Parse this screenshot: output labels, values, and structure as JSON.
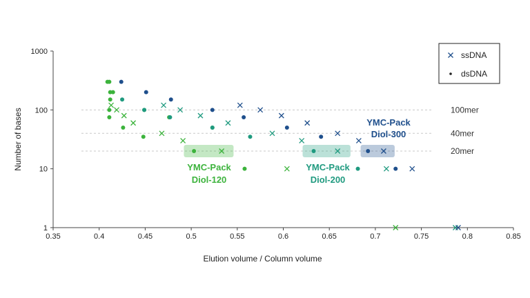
{
  "chart_data": {
    "type": "scatter",
    "title": "",
    "xlabel": "Elution volume / Column volume",
    "ylabel": "Number of bases",
    "xlim": [
      0.35,
      0.85
    ],
    "ylim": [
      1,
      1000
    ],
    "y_scale": "log",
    "x_ticks": [
      "0.35",
      "0.4",
      "0.45",
      "0.5",
      "0.55",
      "0.6",
      "0.65",
      "0.7",
      "0.75",
      "0.8",
      "0.85"
    ],
    "y_ticks": [
      "1",
      "10",
      "100",
      "1000"
    ],
    "legend": {
      "position": "top-right",
      "entries": [
        {
          "label": "ssDNA",
          "marker": "x"
        },
        {
          "label": "dsDNA",
          "marker": "dot"
        }
      ]
    },
    "reference_lines": [
      {
        "y": 100,
        "label": "100mer"
      },
      {
        "y": 40,
        "label": "40mer"
      },
      {
        "y": 20,
        "label": "20mer"
      }
    ],
    "groups": [
      {
        "label_line1": "YMC-Pack",
        "label_line2": "Diol-120",
        "color": "#3cb33c",
        "highlight_x": [
          0.492,
          0.546
        ],
        "highlight_y": 20
      },
      {
        "label_line1": "YMC-Pack",
        "label_line2": "Diol-200",
        "color": "#1f9a7f",
        "highlight_x": [
          0.621,
          0.673
        ],
        "highlight_y": 20
      },
      {
        "label_line1": "YMC-Pack",
        "label_line2": "Diol-300",
        "color": "#1f4f8c",
        "highlight_x": [
          0.684,
          0.721
        ],
        "highlight_y": 20
      }
    ],
    "series": [
      {
        "group": 0,
        "marker": "dot",
        "color": "#3cb33c",
        "points": [
          [
            0.409,
            300
          ],
          [
            0.411,
            300
          ],
          [
            0.412,
            200
          ],
          [
            0.415,
            200
          ],
          [
            0.412,
            150
          ],
          [
            0.411,
            100
          ],
          [
            0.411,
            75
          ],
          [
            0.426,
            50
          ],
          [
            0.448,
            35
          ],
          [
            0.449,
            100
          ],
          [
            0.476,
            75
          ],
          [
            0.503,
            20
          ],
          [
            0.523,
            50
          ],
          [
            0.558,
            10
          ]
        ]
      },
      {
        "group": 0,
        "marker": "x",
        "color": "#3cb33c",
        "points": [
          [
            0.413,
            120
          ],
          [
            0.419,
            100
          ],
          [
            0.427,
            80
          ],
          [
            0.437,
            60
          ],
          [
            0.468,
            40
          ],
          [
            0.491,
            30
          ],
          [
            0.533,
            20
          ],
          [
            0.604,
            10
          ],
          [
            0.722,
            1
          ]
        ]
      },
      {
        "group": 1,
        "marker": "dot",
        "color": "#1f9a7f",
        "points": [
          [
            0.425,
            150
          ],
          [
            0.449,
            100
          ],
          [
            0.477,
            75
          ],
          [
            0.523,
            50
          ],
          [
            0.564,
            35
          ],
          [
            0.633,
            20
          ],
          [
            0.681,
            10
          ]
        ]
      },
      {
        "group": 1,
        "marker": "x",
        "color": "#1f9a7f",
        "points": [
          [
            0.47,
            120
          ],
          [
            0.488,
            100
          ],
          [
            0.51,
            80
          ],
          [
            0.54,
            60
          ],
          [
            0.588,
            40
          ],
          [
            0.62,
            30
          ],
          [
            0.659,
            20
          ],
          [
            0.712,
            10
          ],
          [
            0.787,
            1
          ]
        ]
      },
      {
        "group": 2,
        "marker": "dot",
        "color": "#1f4f8c",
        "points": [
          [
            0.424,
            300
          ],
          [
            0.451,
            200
          ],
          [
            0.478,
            150
          ],
          [
            0.523,
            100
          ],
          [
            0.557,
            75
          ],
          [
            0.604,
            50
          ],
          [
            0.641,
            35
          ],
          [
            0.692,
            20
          ],
          [
            0.722,
            10
          ]
        ]
      },
      {
        "group": 2,
        "marker": "x",
        "color": "#1f4f8c",
        "points": [
          [
            0.553,
            120
          ],
          [
            0.575,
            100
          ],
          [
            0.598,
            80
          ],
          [
            0.626,
            60
          ],
          [
            0.659,
            40
          ],
          [
            0.682,
            30
          ],
          [
            0.709,
            20
          ],
          [
            0.74,
            10
          ],
          [
            0.79,
            1
          ]
        ]
      }
    ]
  }
}
